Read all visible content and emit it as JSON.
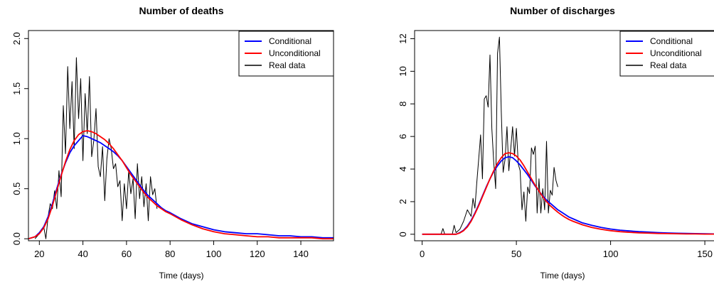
{
  "chart_data": [
    {
      "type": "line",
      "title": "Number of deaths",
      "xlabel": "Time (days)",
      "ylabel": "",
      "xlim": [
        15,
        155
      ],
      "ylim": [
        -0.02,
        2.08
      ],
      "xticks": [
        20,
        40,
        60,
        80,
        100,
        120,
        140
      ],
      "yticks": [
        0.0,
        0.5,
        1.0,
        1.5,
        2.0
      ],
      "xtick_labels": [
        "20",
        "40",
        "60",
        "80",
        "100",
        "120",
        "140"
      ],
      "ytick_labels": [
        "0.0",
        "0.5",
        "1.0",
        "1.5",
        "2.0"
      ],
      "legend": {
        "position": "top-right",
        "entries": [
          "Conditional",
          "Unconditional",
          "Real data"
        ]
      },
      "series": [
        {
          "name": "Conditional",
          "color": "#0000ff",
          "x": [
            15,
            18,
            20,
            22,
            24,
            26,
            28,
            30,
            32,
            34,
            36,
            38,
            40,
            42,
            44,
            46,
            48,
            50,
            52,
            54,
            56,
            58,
            60,
            62,
            64,
            66,
            68,
            70,
            72,
            74,
            76,
            78,
            80,
            85,
            90,
            95,
            100,
            105,
            110,
            115,
            120,
            125,
            130,
            135,
            140,
            145,
            150,
            155
          ],
          "y": [
            0.0,
            0.02,
            0.06,
            0.12,
            0.22,
            0.35,
            0.5,
            0.64,
            0.76,
            0.86,
            0.93,
            0.98,
            1.03,
            1.02,
            1.0,
            0.98,
            0.96,
            0.93,
            0.9,
            0.87,
            0.83,
            0.78,
            0.72,
            0.66,
            0.6,
            0.54,
            0.48,
            0.43,
            0.39,
            0.35,
            0.31,
            0.28,
            0.26,
            0.2,
            0.15,
            0.12,
            0.09,
            0.07,
            0.06,
            0.05,
            0.05,
            0.04,
            0.03,
            0.03,
            0.02,
            0.02,
            0.01,
            0.01
          ]
        },
        {
          "name": "Unconditional",
          "color": "#ff0000",
          "x": [
            15,
            18,
            20,
            22,
            24,
            26,
            28,
            30,
            32,
            34,
            36,
            38,
            40,
            42,
            44,
            46,
            48,
            50,
            52,
            54,
            56,
            58,
            60,
            62,
            64,
            66,
            68,
            70,
            72,
            74,
            76,
            78,
            80,
            85,
            90,
            95,
            100,
            105,
            110,
            115,
            120,
            125,
            130,
            135,
            140,
            145,
            150,
            155
          ],
          "y": [
            0.0,
            0.02,
            0.05,
            0.11,
            0.2,
            0.33,
            0.48,
            0.63,
            0.77,
            0.89,
            0.98,
            1.04,
            1.07,
            1.08,
            1.07,
            1.05,
            1.02,
            0.99,
            0.95,
            0.9,
            0.84,
            0.78,
            0.71,
            0.64,
            0.58,
            0.52,
            0.46,
            0.41,
            0.37,
            0.33,
            0.3,
            0.27,
            0.25,
            0.19,
            0.14,
            0.1,
            0.07,
            0.05,
            0.04,
            0.03,
            0.02,
            0.02,
            0.01,
            0.01,
            0.01,
            0.01,
            0.0,
            0.0
          ]
        },
        {
          "name": "Real data",
          "color": "#000000",
          "x": [
            18,
            20,
            22,
            23,
            24,
            25,
            26,
            27,
            28,
            29,
            30,
            31,
            32,
            33,
            34,
            35,
            36,
            37,
            38,
            39,
            40,
            41,
            42,
            43,
            44,
            45,
            46,
            47,
            48,
            49,
            50,
            51,
            52,
            53,
            54,
            55,
            56,
            57,
            58,
            59,
            60,
            61,
            62,
            63,
            64,
            65,
            66,
            67,
            68,
            69,
            70,
            71,
            72,
            73,
            74
          ],
          "y": [
            0.0,
            0.05,
            0.12,
            0.0,
            0.22,
            0.35,
            0.3,
            0.48,
            0.3,
            0.68,
            0.42,
            1.33,
            0.85,
            1.72,
            1.1,
            1.57,
            0.9,
            1.81,
            1.2,
            1.6,
            0.78,
            1.45,
            1.05,
            1.62,
            0.82,
            0.98,
            1.3,
            0.72,
            0.62,
            0.92,
            0.38,
            0.8,
            1.0,
            0.9,
            0.7,
            0.75,
            0.52,
            0.58,
            0.18,
            0.55,
            0.3,
            0.68,
            0.45,
            0.6,
            0.2,
            0.75,
            0.4,
            0.62,
            0.32,
            0.55,
            0.18,
            0.62,
            0.44,
            0.5,
            0.3
          ]
        }
      ]
    },
    {
      "type": "line",
      "title": "Number of discharges",
      "xlabel": "Time (days)",
      "ylabel": "",
      "xlim": [
        -4,
        156
      ],
      "ylim": [
        -0.4,
        12.5
      ],
      "xticks": [
        0,
        50,
        100,
        150
      ],
      "yticks": [
        0,
        2,
        4,
        6,
        8,
        10,
        12
      ],
      "xtick_labels": [
        "0",
        "50",
        "100",
        "150"
      ],
      "ytick_labels": [
        "0",
        "2",
        "4",
        "6",
        "8",
        "10",
        "12"
      ],
      "legend": {
        "position": "top-right",
        "entries": [
          "Conditional",
          "Unconditional",
          "Real data"
        ]
      },
      "series": [
        {
          "name": "Conditional",
          "color": "#0000ff",
          "x": [
            0,
            5,
            10,
            15,
            18,
            20,
            22,
            24,
            26,
            28,
            30,
            32,
            34,
            36,
            38,
            40,
            42,
            44,
            46,
            48,
            50,
            52,
            54,
            56,
            58,
            60,
            62,
            64,
            66,
            68,
            70,
            72,
            74,
            76,
            78,
            80,
            85,
            90,
            95,
            100,
            105,
            110,
            115,
            120,
            125,
            130,
            135,
            140,
            145,
            150,
            155
          ],
          "y": [
            0,
            0,
            0,
            0,
            0,
            0.1,
            0.25,
            0.5,
            0.85,
            1.3,
            1.8,
            2.35,
            2.9,
            3.4,
            3.85,
            4.2,
            4.5,
            4.7,
            4.75,
            4.7,
            4.5,
            4.25,
            3.95,
            3.65,
            3.3,
            2.95,
            2.65,
            2.35,
            2.1,
            1.9,
            1.7,
            1.5,
            1.35,
            1.2,
            1.05,
            0.95,
            0.7,
            0.55,
            0.42,
            0.32,
            0.25,
            0.2,
            0.16,
            0.13,
            0.1,
            0.08,
            0.06,
            0.05,
            0.04,
            0.03,
            0.02
          ]
        },
        {
          "name": "Unconditional",
          "color": "#ff0000",
          "x": [
            0,
            5,
            10,
            15,
            18,
            20,
            22,
            24,
            26,
            28,
            30,
            32,
            34,
            36,
            38,
            40,
            42,
            44,
            46,
            48,
            50,
            52,
            54,
            56,
            58,
            60,
            62,
            64,
            66,
            68,
            70,
            72,
            74,
            76,
            78,
            80,
            85,
            90,
            95,
            100,
            105,
            110,
            115,
            120,
            125,
            130,
            135,
            140,
            145,
            150,
            155
          ],
          "y": [
            0,
            0,
            0,
            0,
            0,
            0.08,
            0.22,
            0.45,
            0.8,
            1.25,
            1.75,
            2.3,
            2.85,
            3.4,
            3.9,
            4.35,
            4.7,
            4.95,
            5.0,
            4.95,
            4.8,
            4.55,
            4.2,
            3.8,
            3.4,
            3.0,
            2.65,
            2.3,
            2.0,
            1.75,
            1.55,
            1.35,
            1.18,
            1.03,
            0.9,
            0.8,
            0.58,
            0.42,
            0.3,
            0.22,
            0.16,
            0.12,
            0.09,
            0.07,
            0.05,
            0.04,
            0.03,
            0.02,
            0.02,
            0.01,
            0.01
          ]
        },
        {
          "name": "Real data",
          "color": "#000000",
          "x": [
            0,
            10,
            11,
            12,
            16,
            17,
            18,
            20,
            22,
            24,
            26,
            27,
            28,
            29,
            30,
            31,
            32,
            33,
            34,
            35,
            36,
            37,
            38,
            39,
            40,
            41,
            42,
            43,
            44,
            45,
            46,
            47,
            48,
            49,
            50,
            51,
            52,
            53,
            54,
            55,
            56,
            57,
            58,
            59,
            60,
            61,
            62,
            63,
            64,
            65,
            66,
            67,
            68,
            69,
            70,
            71,
            72
          ],
          "y": [
            0,
            0,
            0.35,
            0,
            0,
            0.55,
            0.1,
            0.3,
            0.8,
            1.5,
            1.1,
            2.2,
            1.6,
            3.2,
            4.6,
            6.1,
            3.4,
            8.3,
            8.5,
            7.8,
            11.0,
            6.5,
            4.4,
            2.8,
            11.1,
            12.1,
            7.5,
            3.8,
            4.6,
            6.6,
            3.9,
            5.2,
            6.6,
            4.8,
            6.5,
            4.3,
            3.9,
            1.5,
            2.6,
            0.8,
            2.9,
            2.5,
            5.3,
            4.9,
            5.4,
            1.3,
            3.4,
            1.3,
            2.8,
            1.5,
            5.7,
            1.3,
            2.7,
            2.4,
            4.1,
            3.3,
            2.9
          ]
        }
      ]
    }
  ]
}
